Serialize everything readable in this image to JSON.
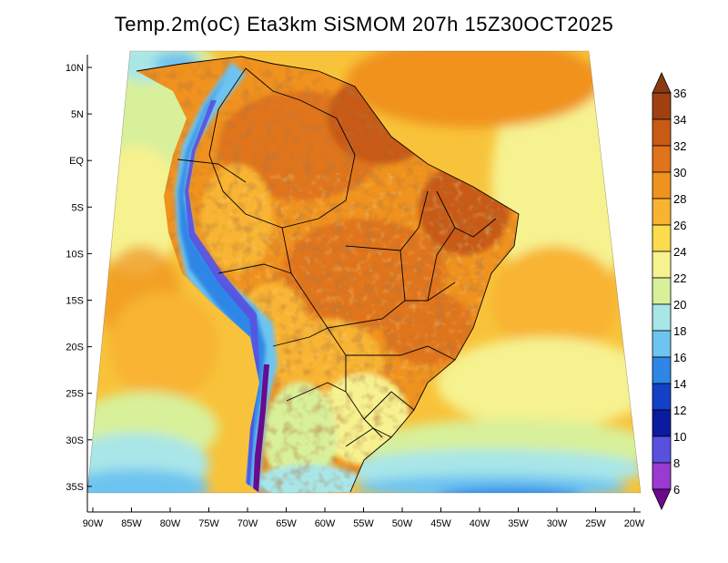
{
  "title": "Temp.2m(oC) Eta3km SiSMOM 207h 15Z30OCT2025",
  "map": {
    "variable": "Temp.2m",
    "units": "oC",
    "model": "Eta3km SiSMOM",
    "forecast_hour": "207h",
    "valid_time": "15Z30OCT2025",
    "lat_labels": [
      "10N",
      "5N",
      "EQ",
      "5S",
      "10S",
      "15S",
      "20S",
      "25S",
      "30S",
      "35S"
    ],
    "lon_labels": [
      "90W",
      "85W",
      "80W",
      "75W",
      "70W",
      "65W",
      "60W",
      "55W",
      "50W",
      "45W",
      "40W",
      "35W",
      "30W",
      "25W",
      "20W"
    ],
    "region": "South America / Brazil"
  },
  "colorbar": {
    "labels": [
      "36",
      "34",
      "32",
      "30",
      "28",
      "26",
      "24",
      "22",
      "20",
      "18",
      "16",
      "14",
      "12",
      "10",
      "8",
      "6"
    ],
    "colors": [
      "#8a3a12",
      "#a04010",
      "#c85a14",
      "#e0741a",
      "#f0921e",
      "#f8b430",
      "#fbdc4c",
      "#f6f290",
      "#d8f09a",
      "#a8e6e8",
      "#6ec4f0",
      "#2e86e6",
      "#1440c8",
      "#0c1aa0",
      "#5a50e0",
      "#9a3ad0",
      "#6a0a8c"
    ]
  }
}
